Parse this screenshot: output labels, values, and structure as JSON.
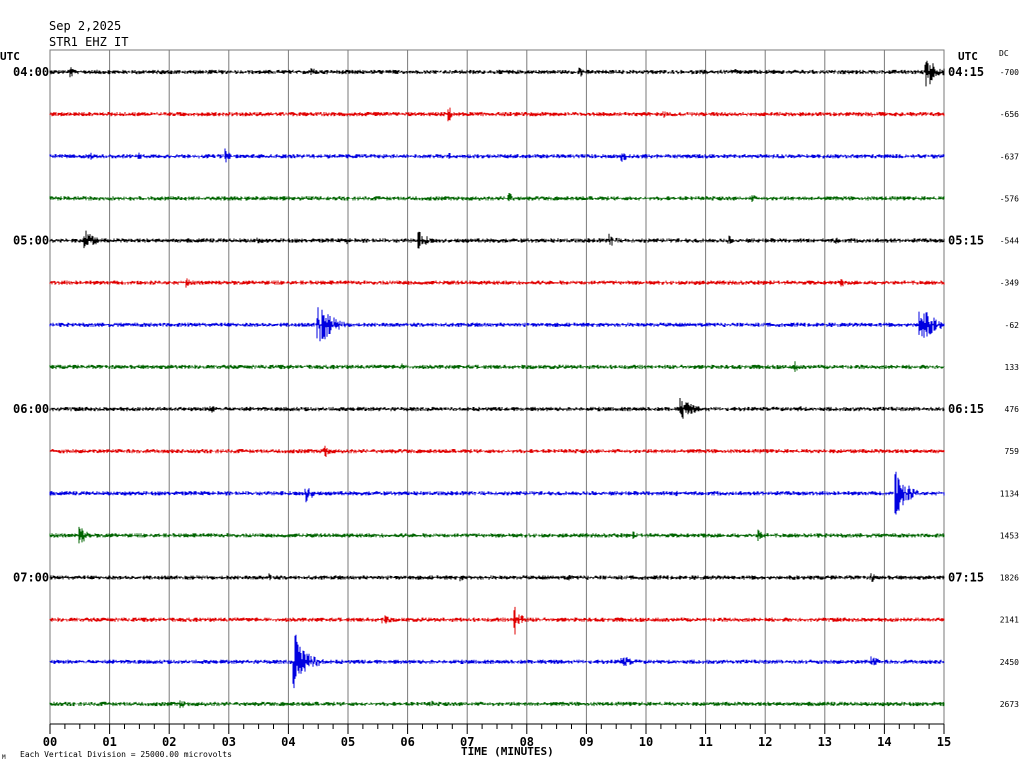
{
  "header": {
    "date": "Sep 2,2025",
    "station": "STR1 EHZ IT"
  },
  "labels": {
    "utc_left": "UTC",
    "utc_right": "UTC",
    "dc": "DC",
    "footer": "Each Vertical Division = 25000.00 microvolts",
    "footer_mark": "M"
  },
  "colors": {
    "black": "#000000",
    "red": "#e00000",
    "blue": "#0000e0",
    "green": "#006400",
    "grid": "#7a7a7a"
  },
  "chart_data": {
    "type": "line",
    "xlabel": "TIME (MINUTES)",
    "xlim": [
      0,
      15
    ],
    "x_ticks": [
      "00",
      "01",
      "02",
      "03",
      "04",
      "05",
      "06",
      "07",
      "08",
      "09",
      "10",
      "11",
      "12",
      "13",
      "14",
      "15"
    ],
    "color_cycle": [
      "black",
      "red",
      "blue",
      "green"
    ],
    "left_time_labels": [
      {
        "trace": 0,
        "label": "04:00"
      },
      {
        "trace": 4,
        "label": "05:00"
      },
      {
        "trace": 8,
        "label": "06:00"
      },
      {
        "trace": 12,
        "label": "07:00"
      }
    ],
    "right_time_labels": [
      {
        "trace": 0,
        "label": "04:15"
      },
      {
        "trace": 4,
        "label": "05:15"
      },
      {
        "trace": 8,
        "label": "06:15"
      },
      {
        "trace": 12,
        "label": "07:15"
      }
    ],
    "dc_offsets": [
      "-700",
      "-656",
      "-637",
      "-576",
      "-544",
      "-349",
      "-62",
      "133",
      "476",
      "759",
      "1134",
      "1453",
      "1826",
      "2141",
      "2450",
      "2673"
    ],
    "events": [
      [
        {
          "t": 0.35,
          "a": 6,
          "d": 0.3
        },
        {
          "t": 4.4,
          "a": 6,
          "d": 0.2
        },
        {
          "t": 8.9,
          "a": 6,
          "d": 0.2
        },
        {
          "t": 11.5,
          "a": 4,
          "d": 0.2
        },
        {
          "t": 14.7,
          "a": 20,
          "d": 0.5
        }
      ],
      [
        {
          "t": 6.7,
          "a": 8,
          "d": 0.2
        },
        {
          "t": 10.3,
          "a": 4,
          "d": 0.2
        },
        {
          "t": 13.8,
          "a": 4,
          "d": 0.2
        }
      ],
      [
        {
          "t": 0.7,
          "a": 4,
          "d": 0.2
        },
        {
          "t": 1.5,
          "a": 4,
          "d": 0.2
        },
        {
          "t": 2.95,
          "a": 8,
          "d": 0.2
        },
        {
          "t": 6.7,
          "a": 4,
          "d": 0.2
        },
        {
          "t": 9.6,
          "a": 6,
          "d": 0.3
        }
      ],
      [
        {
          "t": 7.7,
          "a": 8,
          "d": 0.2
        },
        {
          "t": 11.8,
          "a": 4,
          "d": 0.2
        }
      ],
      [
        {
          "t": 0.6,
          "a": 13,
          "d": 0.4
        },
        {
          "t": 3.5,
          "a": 4,
          "d": 0.2
        },
        {
          "t": 5.0,
          "a": 4,
          "d": 0.2
        },
        {
          "t": 6.2,
          "a": 9,
          "d": 0.5
        },
        {
          "t": 9.4,
          "a": 7,
          "d": 0.4
        },
        {
          "t": 11.4,
          "a": 5,
          "d": 0.2
        },
        {
          "t": 13.2,
          "a": 4,
          "d": 0.2
        }
      ],
      [
        {
          "t": 2.3,
          "a": 5,
          "d": 0.2
        },
        {
          "t": 10.8,
          "a": 4,
          "d": 0.2
        },
        {
          "t": 13.3,
          "a": 4,
          "d": 0.2
        }
      ],
      [
        {
          "t": 4.5,
          "a": 26,
          "d": 0.6
        },
        {
          "t": 14.6,
          "a": 22,
          "d": 0.6
        }
      ],
      [
        {
          "t": 5.9,
          "a": 4,
          "d": 0.2
        },
        {
          "t": 12.5,
          "a": 6,
          "d": 0.2
        }
      ],
      [
        {
          "t": 2.7,
          "a": 6,
          "d": 0.3
        },
        {
          "t": 10.6,
          "a": 11,
          "d": 0.6
        },
        {
          "t": 12.6,
          "a": 4,
          "d": 0.2
        }
      ],
      [
        {
          "t": 4.6,
          "a": 8,
          "d": 0.3
        }
      ],
      [
        {
          "t": 4.3,
          "a": 9,
          "d": 0.4
        },
        {
          "t": 10.5,
          "a": 4,
          "d": 0.2
        },
        {
          "t": 14.2,
          "a": 26,
          "d": 0.5
        }
      ],
      [
        {
          "t": 0.5,
          "a": 10,
          "d": 0.4
        },
        {
          "t": 9.8,
          "a": 4,
          "d": 0.2
        },
        {
          "t": 11.9,
          "a": 7,
          "d": 0.3
        }
      ],
      [
        {
          "t": 3.7,
          "a": 5,
          "d": 0.2
        },
        {
          "t": 6.9,
          "a": 4,
          "d": 0.2
        },
        {
          "t": 8.7,
          "a": 4,
          "d": 0.2
        },
        {
          "t": 13.8,
          "a": 5,
          "d": 0.2
        }
      ],
      [
        {
          "t": 5.6,
          "a": 5,
          "d": 0.6
        },
        {
          "t": 7.8,
          "a": 17,
          "d": 0.3
        }
      ],
      [
        {
          "t": 4.1,
          "a": 32,
          "d": 0.6
        },
        {
          "t": 9.6,
          "a": 7,
          "d": 0.6
        },
        {
          "t": 13.8,
          "a": 6,
          "d": 0.4
        }
      ],
      [
        {
          "t": 2.2,
          "a": 5,
          "d": 0.3
        },
        {
          "t": 6.4,
          "a": 4,
          "d": 0.2
        }
      ]
    ]
  }
}
